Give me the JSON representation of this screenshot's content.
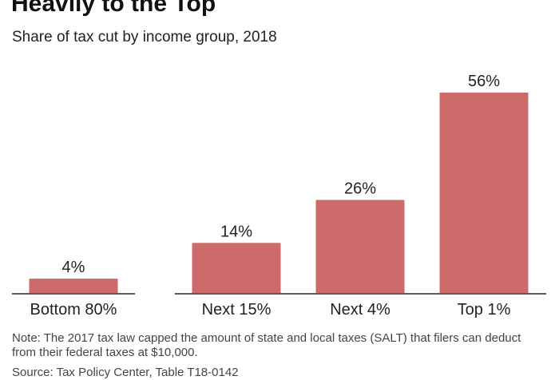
{
  "colors": {
    "bar": "#cd6a6a",
    "axis": "#222222",
    "text": "#222222"
  },
  "chart_data": {
    "type": "bar",
    "title": "Heavily to the Top",
    "subtitle": "Share of tax cut by income group, 2018",
    "categories": [
      "Bottom 80%",
      "Next 15%",
      "Next 4%",
      "Top 1%"
    ],
    "values": [
      4,
      14,
      26,
      56
    ],
    "data_labels": [
      "4%",
      "14%",
      "26%",
      "56%"
    ],
    "unit": "%",
    "xlabel": "",
    "ylabel": "",
    "ylim": [
      0,
      56
    ],
    "grid": false,
    "legend": "none"
  },
  "note": "Note: The 2017 tax law capped the amount of state and local taxes (SALT) that filers can deduct from their federal taxes at $10,000.",
  "source": "Source: Tax Policy Center, Table T18-0142"
}
